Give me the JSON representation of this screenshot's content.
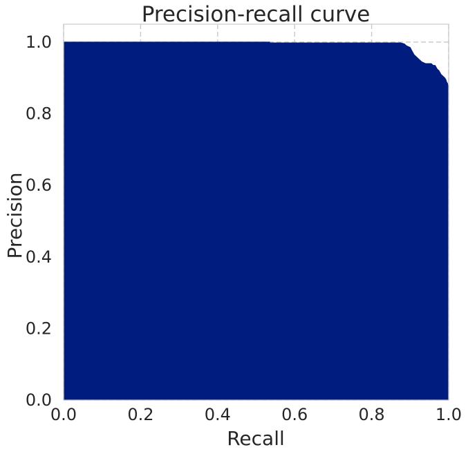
{
  "chart_data": {
    "type": "area",
    "title": "Precision-recall curve",
    "xlabel": "Recall",
    "ylabel": "Precision",
    "xlim": [
      0.0,
      1.0
    ],
    "ylim": [
      0.0,
      1.05
    ],
    "xticks": [
      "0.0",
      "0.2",
      "0.4",
      "0.6",
      "0.8",
      "1.0"
    ],
    "yticks": [
      "0.0",
      "0.2",
      "0.4",
      "0.6",
      "0.8",
      "1.0"
    ],
    "grid": true,
    "grid_style": "dashed",
    "fill_color": "#001c7f",
    "series": [
      {
        "x": [
          0.0,
          0.535,
          0.535,
          0.875,
          0.885,
          0.89,
          0.9,
          0.905,
          0.91,
          0.915,
          0.92,
          0.925,
          0.93,
          0.94,
          0.955,
          0.96,
          0.965,
          0.97,
          0.975,
          0.98,
          0.985,
          0.99,
          0.993,
          0.995,
          0.997,
          0.998,
          1.0,
          1.0
        ],
        "y": [
          1.0,
          1.0,
          0.998,
          0.998,
          0.995,
          0.99,
          0.985,
          0.975,
          0.965,
          0.96,
          0.955,
          0.95,
          0.945,
          0.94,
          0.94,
          0.935,
          0.935,
          0.925,
          0.92,
          0.91,
          0.905,
          0.9,
          0.895,
          0.888,
          0.885,
          0.88,
          0.86,
          0.78
        ]
      }
    ]
  }
}
